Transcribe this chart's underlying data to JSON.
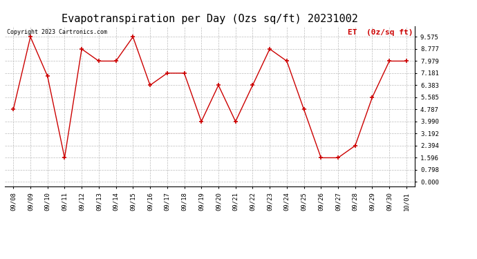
{
  "title": "Evapotranspiration per Day (Ozs sq/ft) 20231002",
  "copyright": "Copyright 2023 Cartronics.com",
  "legend_label": "ET  (0z/sq ft)",
  "dates": [
    "09/08",
    "09/09",
    "09/10",
    "09/11",
    "09/12",
    "09/13",
    "09/14",
    "09/15",
    "09/16",
    "09/17",
    "09/18",
    "09/19",
    "09/20",
    "09/21",
    "09/22",
    "09/23",
    "09/24",
    "09/25",
    "09/26",
    "09/27",
    "09/28",
    "09/29",
    "09/30",
    "10/01"
  ],
  "values": [
    4.787,
    9.575,
    6.981,
    1.596,
    8.777,
    7.979,
    7.979,
    9.575,
    6.383,
    7.181,
    7.181,
    3.99,
    6.383,
    3.99,
    6.383,
    8.777,
    7.979,
    4.787,
    1.596,
    1.596,
    2.394,
    5.585,
    7.979,
    7.979
  ],
  "line_color": "#cc0000",
  "marker": "+",
  "marker_size": 5,
  "marker_linewidth": 1.2,
  "line_width": 1.0,
  "yticks": [
    0.0,
    0.798,
    1.596,
    2.394,
    3.192,
    3.99,
    4.787,
    5.585,
    6.383,
    7.181,
    7.979,
    8.777,
    9.575
  ],
  "ylim": [
    -0.3,
    10.3
  ],
  "bg_color": "#ffffff",
  "grid_color": "#bbbbbb",
  "title_fontsize": 11,
  "tick_fontsize": 6.5,
  "copyright_color": "#000000",
  "copyright_fontsize": 6,
  "legend_color": "#cc0000",
  "legend_fontsize": 8
}
